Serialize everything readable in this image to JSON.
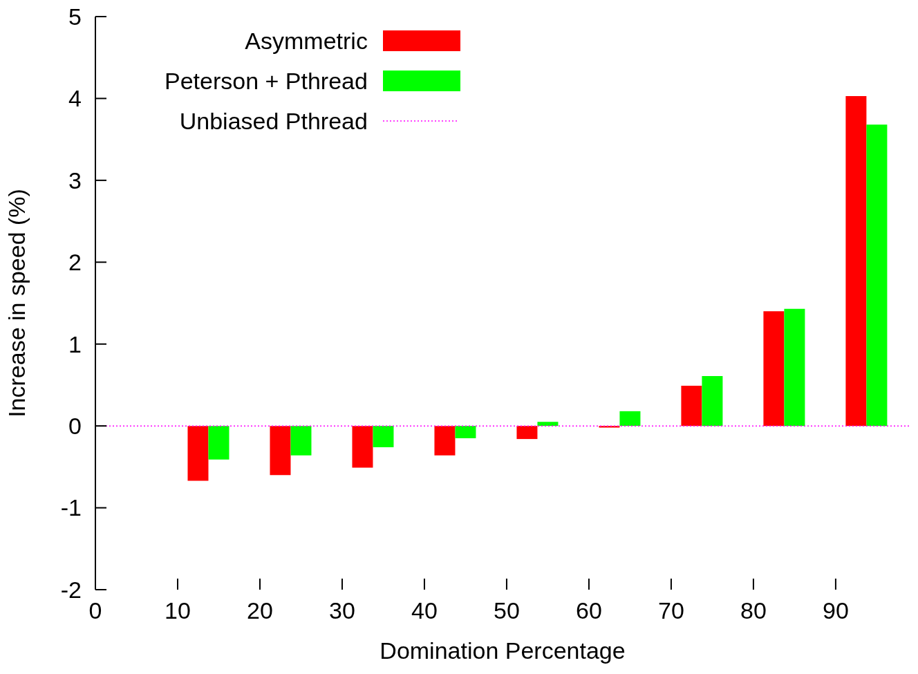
{
  "chart_data": {
    "type": "bar",
    "xlabel": "Domination Percentage",
    "ylabel": "Increase in speed (%)",
    "x": [
      13.7,
      23.7,
      33.7,
      43.7,
      53.7,
      63.7,
      73.7,
      83.7,
      93.7
    ],
    "xlim": [
      0,
      99
    ],
    "xticks": [
      0,
      10,
      20,
      30,
      40,
      50,
      60,
      70,
      80,
      90
    ],
    "ylim": [
      -2,
      5
    ],
    "yticks": [
      -2,
      -1,
      0,
      1,
      2,
      3,
      4,
      5
    ],
    "legend": "top left",
    "series": [
      {
        "name": "Asymmetric",
        "color": "#ff0000",
        "values": [
          -0.67,
          -0.6,
          -0.51,
          -0.36,
          -0.16,
          -0.02,
          0.49,
          1.4,
          4.03
        ]
      },
      {
        "name": "Peterson + Pthread",
        "color": "#00ff00",
        "values": [
          -0.41,
          -0.36,
          -0.26,
          -0.15,
          0.05,
          0.18,
          0.61,
          1.43,
          3.68
        ]
      },
      {
        "name": "Unbiased Pthread",
        "type": "line",
        "color": "#ff00ff",
        "x": [
          0,
          99
        ],
        "values": [
          0,
          0
        ],
        "line_style": "dotted",
        "marker": "none"
      }
    ]
  }
}
